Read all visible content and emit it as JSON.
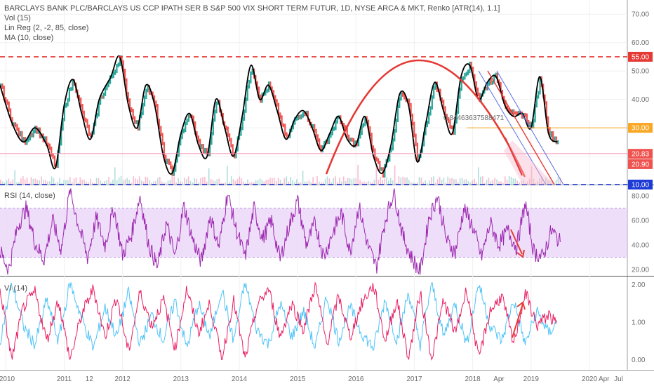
{
  "header": {
    "title": "BARCLAYS BANK PLC/BARCLAYS US CCP IPATH SER B S&P 500 VIX SHORT TERM FUTUR, 1D, NYSE ARCA & MKT, Renko [ATR(14), 1.1]",
    "indicators": [
      "Vol (15)",
      "Lin Reg (2, -2, 85, close)",
      "MA (10, close)"
    ]
  },
  "panes": {
    "rsi_label": "RSI (14, close)",
    "vi_label": "VI (14)"
  },
  "annotations": {
    "linreg_text": "0.84463637588471"
  },
  "colors": {
    "price_up": "#26a69a",
    "price_down": "#ef5350",
    "ma": "#000000",
    "arc": "#e53935",
    "resistance": "#e53935",
    "support": "#1e3bd6",
    "level_orange": "#f9a825",
    "channel": "#5b6ee1",
    "rsi_line": "#9c27b0",
    "rsi_band": "#e9d3f7",
    "vi_plus": "#4fc3f7",
    "vi_minus": "#e91e63"
  },
  "chart_data": [
    {
      "type": "line",
      "pane": "price",
      "x_ticks": [
        "2010",
        "2011",
        "12",
        "2012",
        "2013",
        "2014",
        "2015",
        "2016",
        "2017",
        "2018",
        "Apr",
        "2019",
        "2020",
        "Apr",
        "Jul"
      ],
      "y_ticks": [
        70,
        60,
        50,
        40,
        30,
        20,
        10
      ],
      "ylim": [
        10,
        75
      ],
      "price_tags": [
        {
          "label": "55.00",
          "value": 55,
          "color": "#e53935"
        },
        {
          "label": "30.00",
          "value": 30,
          "color": "#f9a825"
        },
        {
          "label": "20.83",
          "value": 20.83,
          "color": "#ef5350"
        },
        {
          "label": "20.90",
          "value": 20.9,
          "color": "#ef5350"
        },
        {
          "label": "10.00",
          "value": 10,
          "color": "#1e3bd6"
        }
      ],
      "levels": {
        "resistance": 55,
        "support": 10,
        "orange": 30,
        "pink": 20.9
      },
      "series": [
        {
          "x": [
            2009.9,
            2010.1,
            2010.3,
            2010.5,
            2010.7,
            2010.85,
            2011.0,
            2011.15,
            2011.3,
            2011.45,
            2011.6,
            2011.8,
            2011.95,
            2012.1,
            2012.25,
            2012.4,
            2012.55,
            2012.7,
            2012.85,
            2013.0,
            2013.15,
            2013.3,
            2013.45,
            2013.6,
            2013.75,
            2013.9,
            2014.05,
            2014.2,
            2014.35,
            2014.5,
            2014.65,
            2014.8,
            2014.95,
            2015.1,
            2015.25,
            2015.4,
            2015.55,
            2015.7,
            2015.85,
            2016.0,
            2016.15,
            2016.3,
            2016.45,
            2016.6,
            2016.75,
            2016.9,
            2017.05,
            2017.2,
            2017.35,
            2017.5,
            2017.65,
            2017.8,
            2017.95,
            2018.1,
            2018.25,
            2018.4,
            2018.55,
            2018.7,
            2018.85,
            2019.0,
            2019.15,
            2019.3,
            2019.45
          ],
          "values": [
            45,
            32,
            25,
            30,
            24,
            16,
            38,
            47,
            35,
            26,
            40,
            48,
            55,
            38,
            30,
            45,
            38,
            20,
            14,
            28,
            35,
            24,
            20,
            40,
            30,
            20,
            34,
            52,
            40,
            45,
            36,
            26,
            33,
            36,
            30,
            22,
            28,
            34,
            26,
            24,
            34,
            20,
            14,
            24,
            42,
            38,
            18,
            32,
            46,
            36,
            28,
            48,
            52,
            40,
            46,
            48,
            38,
            34,
            35,
            30,
            48,
            28,
            25
          ]
        }
      ]
    },
    {
      "type": "line",
      "pane": "rsi",
      "title": "RSI (14, close)",
      "y_ticks": [
        80,
        60,
        40,
        20
      ],
      "ylim": [
        15,
        88
      ],
      "band": [
        30,
        70
      ],
      "series": [
        {
          "x": [
            2009.9,
            2010.05,
            2010.2,
            2010.35,
            2010.5,
            2010.65,
            2010.8,
            2010.95,
            2011.1,
            2011.25,
            2011.4,
            2011.55,
            2011.7,
            2011.85,
            2012.0,
            2012.15,
            2012.3,
            2012.45,
            2012.6,
            2012.75,
            2012.9,
            2013.05,
            2013.2,
            2013.35,
            2013.5,
            2013.65,
            2013.8,
            2013.95,
            2014.1,
            2014.25,
            2014.4,
            2014.55,
            2014.7,
            2014.85,
            2015.0,
            2015.15,
            2015.3,
            2015.45,
            2015.6,
            2015.75,
            2015.9,
            2016.05,
            2016.2,
            2016.35,
            2016.5,
            2016.65,
            2016.8,
            2016.95,
            2017.1,
            2017.25,
            2017.4,
            2017.55,
            2017.7,
            2017.85,
            2018.0,
            2018.15,
            2018.3,
            2018.45,
            2018.6,
            2018.75,
            2018.9,
            2019.05,
            2019.2,
            2019.35,
            2019.5
          ],
          "values": [
            35,
            20,
            55,
            70,
            42,
            28,
            60,
            36,
            85,
            55,
            30,
            62,
            40,
            70,
            32,
            48,
            80,
            40,
            22,
            58,
            30,
            72,
            45,
            26,
            64,
            38,
            82,
            52,
            30,
            70,
            45,
            60,
            28,
            55,
            76,
            40,
            58,
            30,
            50,
            66,
            34,
            72,
            40,
            22,
            60,
            84,
            48,
            30,
            18,
            62,
            80,
            44,
            34,
            70,
            55,
            30,
            58,
            40,
            52,
            38,
            74,
            34,
            30,
            52,
            42
          ]
        }
      ]
    },
    {
      "type": "line",
      "pane": "vi",
      "title": "VI (14)",
      "y_ticks": [
        2.0,
        1.0,
        0.0
      ],
      "y_tick_labels": [
        "2.00",
        "1.00",
        "0.00"
      ],
      "ylim": [
        -0.2,
        2.2
      ],
      "series": [
        {
          "x": [
            2009.9,
            2010.1,
            2010.3,
            2010.5,
            2010.7,
            2010.9,
            2011.1,
            2011.3,
            2011.5,
            2011.7,
            2011.9,
            2012.1,
            2012.3,
            2012.5,
            2012.7,
            2012.9,
            2013.1,
            2013.3,
            2013.5,
            2013.7,
            2013.9,
            2014.1,
            2014.3,
            2014.5,
            2014.7,
            2014.9,
            2015.1,
            2015.3,
            2015.5,
            2015.7,
            2015.9,
            2016.1,
            2016.3,
            2016.5,
            2016.7,
            2016.9,
            2017.1,
            2017.3,
            2017.5,
            2017.7,
            2017.9,
            2018.1,
            2018.3,
            2018.5,
            2018.7,
            2018.9,
            2019.1,
            2019.3,
            2019.45
          ],
          "values": [
            0.5,
            2.05,
            0.9,
            0.4,
            1.6,
            0.5,
            2.05,
            1.1,
            0.3,
            1.4,
            0.6,
            1.8,
            0.4,
            1.2,
            0.5,
            1.6,
            0.3,
            1.5,
            0.6,
            1.9,
            0.5,
            2.05,
            0.8,
            0.4,
            1.5,
            0.6,
            1.3,
            0.3,
            1.7,
            0.5,
            1.4,
            0.7,
            0.3,
            1.6,
            0.5,
            1.8,
            0.4,
            2.05,
            0.6,
            1.5,
            0.4,
            2.05,
            0.9,
            0.5,
            1.6,
            0.4,
            1.3,
            0.7,
            1.0
          ]
        },
        {
          "x": [
            2009.9,
            2010.1,
            2010.3,
            2010.5,
            2010.7,
            2010.9,
            2011.1,
            2011.3,
            2011.5,
            2011.7,
            2011.9,
            2012.1,
            2012.3,
            2012.5,
            2012.7,
            2012.9,
            2013.1,
            2013.3,
            2013.5,
            2013.7,
            2013.9,
            2014.1,
            2014.3,
            2014.5,
            2014.7,
            2014.9,
            2015.1,
            2015.3,
            2015.5,
            2015.7,
            2015.9,
            2016.1,
            2016.3,
            2016.5,
            2016.7,
            2016.9,
            2017.1,
            2017.3,
            2017.5,
            2017.7,
            2017.9,
            2018.1,
            2018.3,
            2018.5,
            2018.7,
            2018.9,
            2019.1,
            2019.3,
            2019.45
          ],
          "values": [
            1.9,
            0.0,
            1.4,
            1.8,
            0.5,
            1.6,
            0.0,
            1.2,
            1.9,
            0.6,
            1.7,
            0.2,
            1.8,
            0.9,
            1.6,
            0.3,
            1.9,
            0.7,
            1.5,
            0.0,
            1.6,
            0.0,
            1.4,
            1.9,
            0.6,
            1.5,
            0.8,
            2.0,
            0.4,
            1.7,
            0.6,
            1.5,
            2.0,
            0.5,
            1.6,
            0.0,
            1.8,
            0.0,
            1.6,
            0.7,
            1.9,
            0.0,
            1.3,
            1.7,
            0.4,
            1.8,
            0.9,
            1.2,
            0.9
          ]
        }
      ]
    }
  ]
}
